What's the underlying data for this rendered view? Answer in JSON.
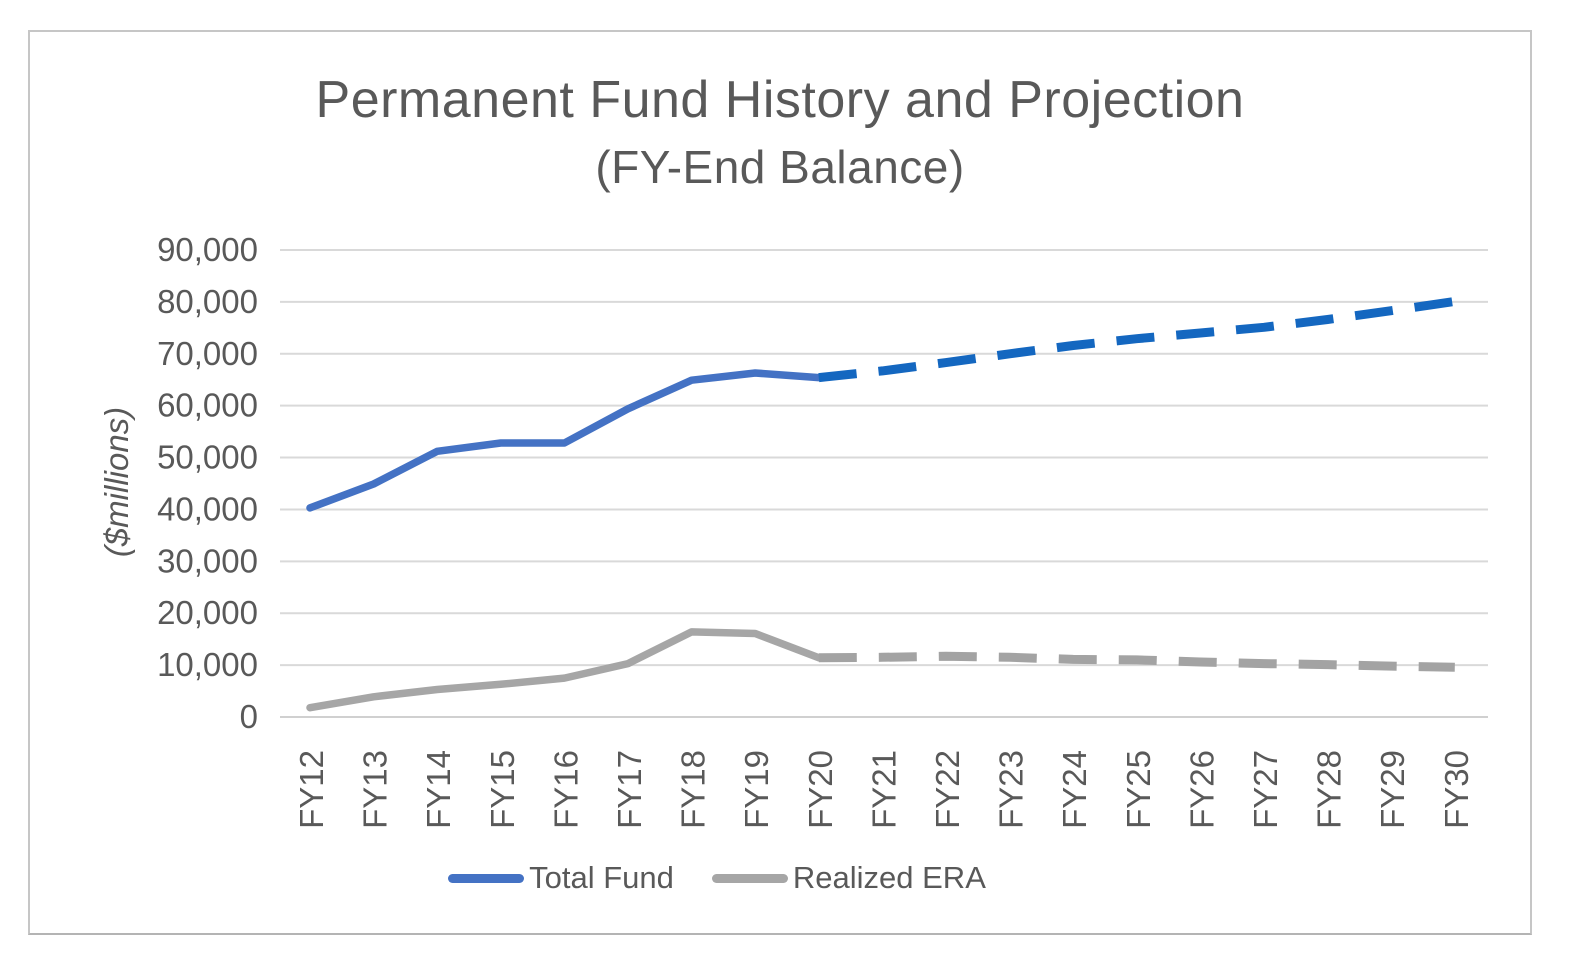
{
  "chart_data": {
    "type": "line",
    "title": "Permanent Fund History and Projection",
    "subtitle": "(FY-End Balance)",
    "ylabel": "($millions)",
    "categories": [
      "FY12",
      "FY13",
      "FY14",
      "FY15",
      "FY16",
      "FY17",
      "FY18",
      "FY19",
      "FY20",
      "FY21",
      "FY22",
      "FY23",
      "FY24",
      "FY25",
      "FY26",
      "FY27",
      "FY28",
      "FY29",
      "FY30"
    ],
    "ylim": [
      0,
      90000
    ],
    "ytick_step": 10000,
    "ytick_labels": [
      "0",
      "10,000",
      "20,000",
      "30,000",
      "40,000",
      "50,000",
      "60,000",
      "70,000",
      "80,000",
      "90,000"
    ],
    "grid": true,
    "legend_position": "bottom",
    "history_through": "FY20",
    "projection_note": "values from FY20 onward drawn dashed (projection)",
    "series": [
      {
        "name": "Total Fund",
        "solid_color": "#4472c4",
        "dashed_color": "#1467c0",
        "split_index": 8,
        "values": [
          40300,
          44900,
          51200,
          52800,
          52800,
          59400,
          64900,
          66300,
          65400,
          66700,
          68300,
          70000,
          71600,
          72900,
          74000,
          75100,
          76600,
          78300,
          80100
        ]
      },
      {
        "name": "Realized ERA",
        "solid_color": "#a6a6a6",
        "dashed_color": "#a3a3a3",
        "split_index": 8,
        "values": [
          1800,
          3900,
          5300,
          6300,
          7500,
          10300,
          16400,
          16100,
          11400,
          11500,
          11700,
          11500,
          11100,
          11000,
          10600,
          10300,
          10100,
          9800,
          9600
        ]
      }
    ],
    "style": {
      "text_color": "#595959",
      "gridline_color": "#d9d9d9",
      "axis_line_color": "#d0d0d0",
      "frame_border_color": "#c6c6c6",
      "background_color": "#ffffff"
    }
  }
}
